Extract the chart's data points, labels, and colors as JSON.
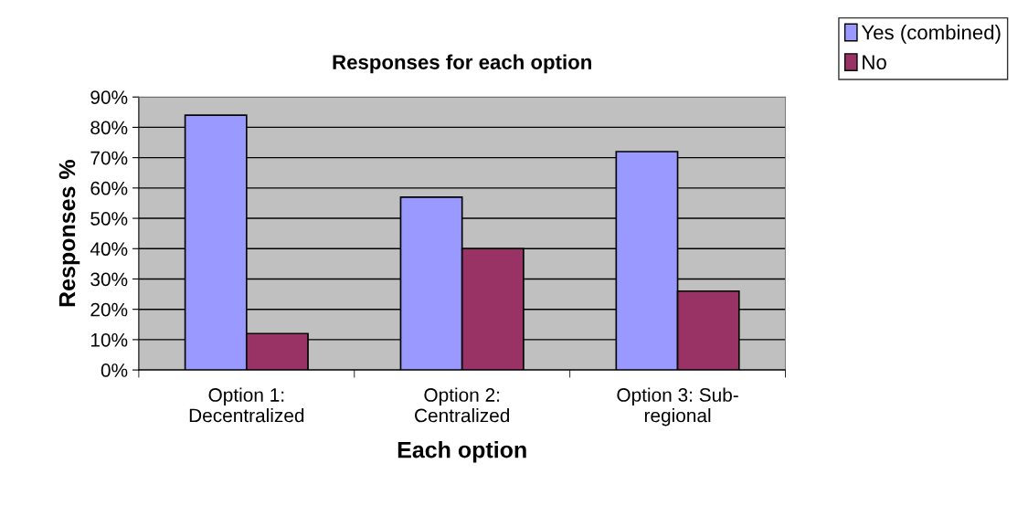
{
  "chart_data": {
    "type": "bar",
    "title": "Responses for each option",
    "xlabel": "Each option",
    "ylabel": "Responses %",
    "categories": [
      "Option 1:\nDecentralized",
      "Option 2:\nCentralized",
      "Option 3: Sub-\nregional"
    ],
    "series": [
      {
        "name": "Yes (combined)",
        "color": "#9999ff",
        "values": [
          84,
          57,
          72
        ]
      },
      {
        "name": "No",
        "color": "#993366",
        "values": [
          12,
          40,
          26
        ]
      }
    ],
    "ylim": [
      0,
      90
    ],
    "yticks": [
      {
        "value": 0,
        "label": "0%"
      },
      {
        "value": 10,
        "label": "10%"
      },
      {
        "value": 20,
        "label": "20%"
      },
      {
        "value": 30,
        "label": "30%"
      },
      {
        "value": 40,
        "label": "40%"
      },
      {
        "value": 50,
        "label": "50%"
      },
      {
        "value": 60,
        "label": "60%"
      },
      {
        "value": 70,
        "label": "70%"
      },
      {
        "value": 80,
        "label": "80%"
      },
      {
        "value": 90,
        "label": "90%"
      }
    ],
    "grid": "y",
    "legend": "top right"
  }
}
